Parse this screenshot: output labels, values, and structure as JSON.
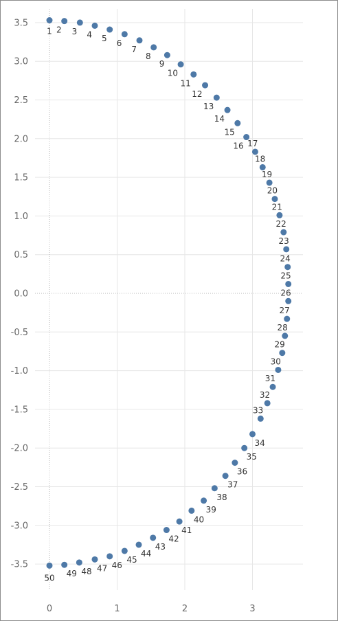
{
  "chart_data": {
    "type": "scatter",
    "title": "",
    "xlabel": "",
    "ylabel": "",
    "xlim": [
      -0.2,
      3.75
    ],
    "ylim": [
      -3.85,
      3.75
    ],
    "x_ticks": [
      "0",
      "1",
      "2",
      "3"
    ],
    "x_tick_values": [
      0,
      1,
      2,
      3
    ],
    "y_ticks": [
      "3.5",
      "3.0",
      "2.5",
      "2.0",
      "1.5",
      "1.0",
      "0.5",
      "0.0",
      "-0.5",
      "-1.0",
      "-1.5",
      "-2.0",
      "-2.5",
      "-3.0",
      "-3.5"
    ],
    "y_tick_values": [
      3.5,
      3.0,
      2.5,
      2.0,
      1.5,
      1.0,
      0.5,
      0.0,
      -0.5,
      -1.0,
      -1.5,
      -2.0,
      -2.5,
      -3.0,
      -3.5
    ],
    "grid": true,
    "zero_lines": true,
    "marker_color": "#4e79a7",
    "points": [
      {
        "label": "1",
        "x": 0.0,
        "y": 3.53
      },
      {
        "label": "2",
        "x": 0.22,
        "y": 3.52
      },
      {
        "label": "3",
        "x": 0.45,
        "y": 3.5
      },
      {
        "label": "4",
        "x": 0.67,
        "y": 3.46
      },
      {
        "label": "5",
        "x": 0.89,
        "y": 3.41
      },
      {
        "label": "6",
        "x": 1.11,
        "y": 3.35
      },
      {
        "label": "7",
        "x": 1.33,
        "y": 3.27
      },
      {
        "label": "8",
        "x": 1.54,
        "y": 3.18
      },
      {
        "label": "9",
        "x": 1.74,
        "y": 3.08
      },
      {
        "label": "10",
        "x": 1.94,
        "y": 2.96
      },
      {
        "label": "11",
        "x": 2.13,
        "y": 2.83
      },
      {
        "label": "12",
        "x": 2.3,
        "y": 2.69
      },
      {
        "label": "13",
        "x": 2.47,
        "y": 2.53
      },
      {
        "label": "14",
        "x": 2.63,
        "y": 2.37
      },
      {
        "label": "15",
        "x": 2.78,
        "y": 2.2
      },
      {
        "label": "16",
        "x": 2.91,
        "y": 2.02
      },
      {
        "label": "17",
        "x": 3.04,
        "y": 1.83
      },
      {
        "label": "18",
        "x": 3.15,
        "y": 1.63
      },
      {
        "label": "19",
        "x": 3.25,
        "y": 1.43
      },
      {
        "label": "20",
        "x": 3.33,
        "y": 1.22
      },
      {
        "label": "21",
        "x": 3.4,
        "y": 1.01
      },
      {
        "label": "22",
        "x": 3.46,
        "y": 0.79
      },
      {
        "label": "23",
        "x": 3.5,
        "y": 0.57
      },
      {
        "label": "24",
        "x": 3.52,
        "y": 0.34
      },
      {
        "label": "25",
        "x": 3.53,
        "y": 0.12
      },
      {
        "label": "26",
        "x": 3.53,
        "y": -0.1
      },
      {
        "label": "27",
        "x": 3.51,
        "y": -0.33
      },
      {
        "label": "28",
        "x": 3.48,
        "y": -0.55
      },
      {
        "label": "29",
        "x": 3.44,
        "y": -0.77
      },
      {
        "label": "30",
        "x": 3.38,
        "y": -0.99
      },
      {
        "label": "31",
        "x": 3.3,
        "y": -1.21
      },
      {
        "label": "32",
        "x": 3.22,
        "y": -1.42
      },
      {
        "label": "33",
        "x": 3.12,
        "y": -1.62
      },
      {
        "label": "34",
        "x": 3.0,
        "y": -1.82
      },
      {
        "label": "35",
        "x": 2.88,
        "y": -2.0
      },
      {
        "label": "36",
        "x": 2.74,
        "y": -2.19
      },
      {
        "label": "37",
        "x": 2.6,
        "y": -2.36
      },
      {
        "label": "38",
        "x": 2.44,
        "y": -2.52
      },
      {
        "label": "39",
        "x": 2.28,
        "y": -2.68
      },
      {
        "label": "40",
        "x": 2.1,
        "y": -2.81
      },
      {
        "label": "41",
        "x": 1.92,
        "y": -2.95
      },
      {
        "label": "42",
        "x": 1.73,
        "y": -3.06
      },
      {
        "label": "43",
        "x": 1.53,
        "y": -3.16
      },
      {
        "label": "44",
        "x": 1.32,
        "y": -3.25
      },
      {
        "label": "45",
        "x": 1.11,
        "y": -3.33
      },
      {
        "label": "46",
        "x": 0.89,
        "y": -3.4
      },
      {
        "label": "47",
        "x": 0.67,
        "y": -3.44
      },
      {
        "label": "48",
        "x": 0.44,
        "y": -3.48
      },
      {
        "label": "49",
        "x": 0.22,
        "y": -3.51
      },
      {
        "label": "50",
        "x": 0.0,
        "y": -3.52
      }
    ]
  }
}
